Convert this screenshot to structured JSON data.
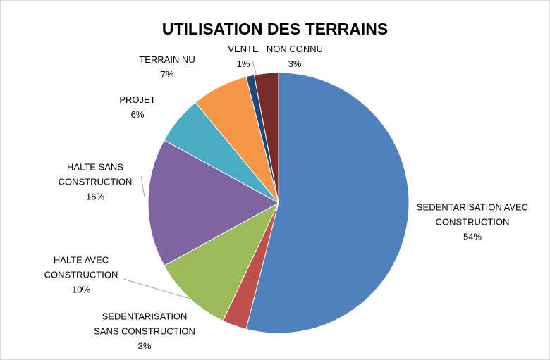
{
  "chart_data": {
    "type": "pie",
    "title": "UTILISATION DES TERRAINS",
    "categories": [
      "SEDENTARISATION AVEC CONSTRUCTION",
      "SEDENTARISATION SANS CONSTRUCTION",
      "HALTE AVEC CONSTRUCTION",
      "HALTE SANS CONSTRUCTION",
      "PROJET",
      "TERRAIN NU",
      "VENTE",
      "NON CONNU"
    ],
    "values": [
      54,
      3,
      10,
      16,
      6,
      7,
      1,
      3
    ],
    "value_labels": [
      "54%",
      "3%",
      "10%",
      "16%",
      "6%",
      "7%",
      "1%",
      "3%"
    ],
    "colors": [
      "#4f81bd",
      "#c0504d",
      "#9bbb59",
      "#8064a2",
      "#4bacc6",
      "#f79646",
      "#1f497d",
      "#772c2a"
    ]
  }
}
